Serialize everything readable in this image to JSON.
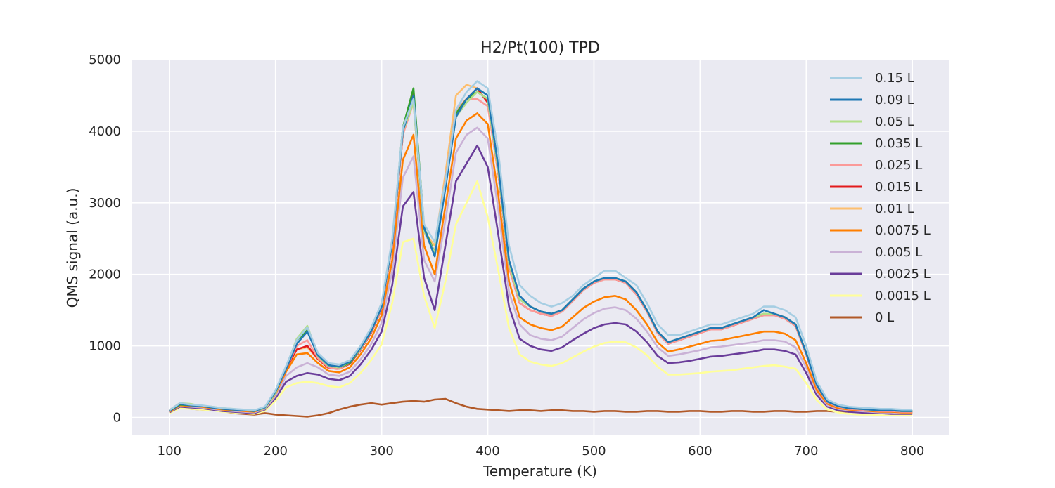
{
  "chart_data": {
    "type": "line",
    "title": "H2/Pt(100) TPD",
    "xlabel": "Temperature (K)",
    "ylabel": "QMS signal (a.u.)",
    "xlim": [
      65,
      835
    ],
    "ylim": [
      -250,
      5000
    ],
    "xticks": [
      100,
      200,
      300,
      400,
      500,
      600,
      700,
      800
    ],
    "yticks": [
      0,
      1000,
      2000,
      3000,
      4000,
      5000
    ],
    "grid": true,
    "legend_position": "top-right",
    "x": [
      100,
      110,
      120,
      130,
      140,
      150,
      160,
      170,
      180,
      190,
      200,
      210,
      220,
      230,
      240,
      250,
      260,
      270,
      280,
      290,
      300,
      310,
      320,
      330,
      340,
      350,
      360,
      370,
      380,
      390,
      400,
      410,
      420,
      430,
      440,
      450,
      460,
      470,
      480,
      490,
      500,
      510,
      520,
      530,
      540,
      550,
      560,
      570,
      580,
      590,
      600,
      610,
      620,
      630,
      640,
      650,
      660,
      670,
      680,
      690,
      700,
      710,
      720,
      730,
      740,
      750,
      760,
      770,
      780,
      790,
      800
    ],
    "series": [
      {
        "name": "0.15 L",
        "color": "#a6cee3",
        "values": [
          100,
          200,
          180,
          170,
          150,
          130,
          120,
          110,
          100,
          150,
          380,
          720,
          1080,
          1260,
          900,
          760,
          740,
          800,
          1000,
          1250,
          1600,
          2500,
          4050,
          4450,
          2700,
          2450,
          3300,
          4300,
          4550,
          4700,
          4600,
          3700,
          2400,
          1850,
          1700,
          1600,
          1550,
          1600,
          1700,
          1850,
          1950,
          2050,
          2050,
          1950,
          1850,
          1600,
          1300,
          1150,
          1150,
          1200,
          1250,
          1300,
          1300,
          1350,
          1400,
          1450,
          1550,
          1550,
          1500,
          1400,
          1000,
          500,
          250,
          180,
          150,
          140,
          130,
          120,
          120,
          110,
          110
        ]
      },
      {
        "name": "0.09 L",
        "color": "#1f78b4",
        "values": [
          90,
          190,
          170,
          160,
          140,
          120,
          110,
          100,
          90,
          140,
          360,
          680,
          1030,
          1200,
          870,
          730,
          710,
          780,
          970,
          1200,
          1550,
          2450,
          4000,
          4500,
          2650,
          2250,
          3200,
          4200,
          4450,
          4600,
          4500,
          3500,
          2200,
          1700,
          1550,
          1480,
          1450,
          1500,
          1650,
          1800,
          1900,
          1950,
          1950,
          1900,
          1750,
          1500,
          1200,
          1050,
          1100,
          1150,
          1200,
          1250,
          1250,
          1300,
          1350,
          1400,
          1500,
          1450,
          1400,
          1300,
          900,
          450,
          220,
          160,
          130,
          120,
          110,
          100,
          100,
          90,
          90
        ]
      },
      {
        "name": "0.05 L",
        "color": "#b2df8a",
        "values": [
          90,
          200,
          190,
          160,
          150,
          130,
          120,
          100,
          90,
          130,
          340,
          700,
          1100,
          1280,
          860,
          720,
          700,
          780,
          960,
          1200,
          1550,
          2450,
          4000,
          4400,
          2600,
          2300,
          3250,
          4200,
          4400,
          4550,
          4450,
          3450,
          2150,
          1650,
          1550,
          1480,
          1450,
          1500,
          1650,
          1800,
          1900,
          1950,
          1950,
          1900,
          1750,
          1500,
          1200,
          1050,
          1100,
          1150,
          1200,
          1250,
          1250,
          1300,
          1350,
          1400,
          1450,
          1450,
          1400,
          1300,
          900,
          450,
          220,
          160,
          130,
          120,
          110,
          100,
          100,
          90,
          90
        ]
      },
      {
        "name": "0.035 L",
        "color": "#33a02c",
        "values": [
          90,
          180,
          170,
          160,
          140,
          120,
          110,
          100,
          90,
          140,
          360,
          700,
          1080,
          1220,
          860,
          720,
          700,
          760,
          960,
          1200,
          1550,
          2450,
          4050,
          4600,
          2650,
          2300,
          3250,
          4250,
          4450,
          4550,
          4450,
          3450,
          2150,
          1650,
          1550,
          1480,
          1450,
          1500,
          1650,
          1800,
          1900,
          1950,
          1950,
          1900,
          1750,
          1500,
          1200,
          1050,
          1100,
          1150,
          1200,
          1250,
          1250,
          1300,
          1350,
          1400,
          1450,
          1450,
          1400,
          1300,
          900,
          450,
          220,
          160,
          130,
          120,
          110,
          100,
          100,
          90,
          90
        ]
      },
      {
        "name": "0.025 L",
        "color": "#fb9a99",
        "values": [
          90,
          180,
          170,
          160,
          140,
          120,
          110,
          100,
          90,
          140,
          350,
          680,
          1000,
          1080,
          830,
          700,
          680,
          760,
          950,
          1190,
          1530,
          2400,
          3950,
          4400,
          2600,
          2300,
          3300,
          4300,
          4450,
          4450,
          4350,
          3400,
          2100,
          1600,
          1500,
          1450,
          1420,
          1480,
          1630,
          1780,
          1880,
          1930,
          1930,
          1880,
          1720,
          1480,
          1180,
          1030,
          1080,
          1130,
          1180,
          1230,
          1230,
          1280,
          1330,
          1380,
          1430,
          1430,
          1380,
          1280,
          880,
          430,
          210,
          150,
          120,
          110,
          100,
          90,
          90,
          80,
          80
        ]
      },
      {
        "name": "0.015 L",
        "color": "#e31a1c",
        "values": [
          90,
          180,
          170,
          160,
          140,
          120,
          110,
          100,
          90,
          140,
          350,
          680,
          950,
          1000,
          820,
          690,
          680,
          750,
          940,
          1180,
          1520,
          2400,
          3950,
          4550,
          2600,
          2300,
          3300,
          4300,
          4450,
          4600,
          4400,
          3400,
          2100,
          1600,
          1500,
          1450,
          1420,
          1480,
          1630,
          1780,
          1880,
          1930,
          1930,
          1880,
          1720,
          1480,
          1180,
          1030,
          1080,
          1130,
          1180,
          1230,
          1230,
          1280,
          1330,
          1380,
          1430,
          1430,
          1380,
          1280,
          880,
          430,
          210,
          150,
          120,
          110,
          100,
          90,
          90,
          80,
          80
        ]
      },
      {
        "name": "0.01 L",
        "color": "#fdbf6f",
        "values": [
          90,
          180,
          170,
          160,
          140,
          120,
          110,
          100,
          90,
          140,
          350,
          680,
          950,
          980,
          810,
          690,
          680,
          750,
          940,
          1180,
          1520,
          2400,
          3950,
          4450,
          2600,
          2400,
          3400,
          4500,
          4650,
          4600,
          4400,
          3400,
          2100,
          1600,
          1500,
          1450,
          1420,
          1480,
          1630,
          1780,
          1880,
          1930,
          1930,
          1880,
          1720,
          1480,
          1180,
          1030,
          1080,
          1130,
          1180,
          1230,
          1230,
          1280,
          1330,
          1380,
          1430,
          1430,
          1380,
          1280,
          880,
          430,
          210,
          150,
          120,
          110,
          100,
          90,
          90,
          80,
          80
        ]
      },
      {
        "name": "0.0075 L",
        "color": "#ff7f00",
        "values": [
          80,
          170,
          160,
          150,
          130,
          110,
          100,
          90,
          80,
          130,
          330,
          640,
          880,
          900,
          760,
          650,
          630,
          700,
          880,
          1100,
          1430,
          2200,
          3600,
          3950,
          2400,
          2000,
          2950,
          3900,
          4150,
          4250,
          4100,
          3100,
          1900,
          1400,
          1300,
          1250,
          1220,
          1270,
          1400,
          1530,
          1620,
          1680,
          1700,
          1650,
          1500,
          1300,
          1050,
          920,
          950,
          990,
          1030,
          1070,
          1080,
          1110,
          1140,
          1170,
          1200,
          1200,
          1170,
          1080,
          760,
          380,
          190,
          130,
          110,
          100,
          90,
          80,
          80,
          70,
          70
        ]
      },
      {
        "name": "0.005 L",
        "color": "#cab2d6",
        "values": [
          80,
          160,
          150,
          140,
          120,
          100,
          90,
          80,
          70,
          120,
          300,
          580,
          700,
          760,
          700,
          600,
          580,
          640,
          810,
          1020,
          1320,
          2050,
          3350,
          3650,
          2200,
          1900,
          2750,
          3700,
          3950,
          4050,
          3900,
          2900,
          1750,
          1300,
          1150,
          1100,
          1080,
          1130,
          1250,
          1370,
          1460,
          1520,
          1540,
          1500,
          1380,
          1200,
          980,
          860,
          880,
          910,
          940,
          980,
          990,
          1010,
          1030,
          1050,
          1080,
          1080,
          1060,
          980,
          700,
          350,
          170,
          120,
          100,
          90,
          80,
          70,
          70,
          60,
          60
        ]
      },
      {
        "name": "0.0025 L",
        "color": "#6a3d9a",
        "values": [
          70,
          150,
          140,
          130,
          110,
          90,
          80,
          70,
          60,
          110,
          270,
          500,
          580,
          620,
          600,
          540,
          520,
          580,
          740,
          940,
          1200,
          1850,
          2950,
          3150,
          1950,
          1500,
          2400,
          3300,
          3550,
          3800,
          3500,
          2550,
          1550,
          1100,
          1000,
          950,
          930,
          980,
          1080,
          1170,
          1250,
          1300,
          1320,
          1300,
          1200,
          1050,
          860,
          760,
          770,
          790,
          820,
          850,
          860,
          880,
          900,
          920,
          950,
          950,
          930,
          880,
          620,
          310,
          150,
          100,
          80,
          70,
          60,
          60,
          50,
          50,
          50
        ]
      },
      {
        "name": "0.0015 L",
        "color": "#ffff99",
        "values": [
          60,
          130,
          120,
          110,
          100,
          80,
          70,
          60,
          50,
          90,
          230,
          420,
          480,
          500,
          480,
          440,
          420,
          480,
          620,
          800,
          1020,
          1600,
          2450,
          2500,
          1700,
          1250,
          1900,
          2700,
          3000,
          3300,
          2800,
          2050,
          1250,
          880,
          780,
          740,
          720,
          760,
          840,
          920,
          990,
          1040,
          1060,
          1050,
          980,
          870,
          710,
          600,
          600,
          610,
          620,
          640,
          650,
          660,
          680,
          700,
          720,
          730,
          710,
          680,
          480,
          240,
          110,
          70,
          50,
          40,
          40,
          30,
          30,
          30,
          30
        ]
      },
      {
        "name": "0 L",
        "color": "#b15928",
        "values": [
          100,
          200,
          120,
          110,
          100,
          90,
          60,
          50,
          40,
          60,
          40,
          30,
          20,
          10,
          30,
          60,
          110,
          150,
          180,
          200,
          180,
          200,
          220,
          230,
          220,
          250,
          260,
          200,
          150,
          120,
          110,
          100,
          90,
          100,
          100,
          90,
          100,
          100,
          90,
          90,
          80,
          90,
          90,
          80,
          80,
          90,
          90,
          80,
          80,
          90,
          90,
          80,
          80,
          90,
          90,
          80,
          80,
          90,
          90,
          80,
          80,
          90,
          90,
          80,
          80,
          90,
          80,
          80,
          90,
          80,
          80
        ]
      }
    ]
  }
}
